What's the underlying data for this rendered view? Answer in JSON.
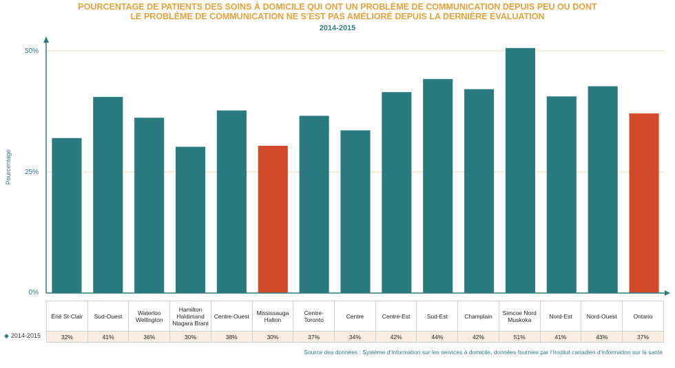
{
  "title_line1": "POURCENTAGE DE PATIENTS DES SOINS À DOMICILE QUI ONT UN PROBLÈME DE COMMUNICATION DEPUIS PEU OU DONT",
  "title_line2": "LE PROBLÈME DE COMMUNICATION NE S’EST PAS AMÉLIORÉ DEPUIS LA DERNIÈRE ÉVALUATION",
  "subtitle": "2014-2015",
  "ylabel": "Pourcentage",
  "yticks": [
    "0%",
    "25%",
    "50%"
  ],
  "series_label": "2014-2015",
  "source": "Source des données : Système d’information sur les services à domicile, données fournies par l’Institut canadien d’information sur la santé",
  "colors": {
    "teal": "#2a7b80",
    "highlight": "#d24a2a",
    "grid": "#f2d7b0"
  },
  "chart_data": {
    "type": "bar",
    "categories": [
      "Érié St-Clair",
      "Sud-Ouest",
      "Waterloo Wellington",
      "Hamilton Haldimand Niagara Brant",
      "Centre-Ouest",
      "Mississauga Halton",
      "Centre-Toronto",
      "Centre",
      "Centre-Est",
      "Sud-Est",
      "Champlain",
      "Simcoe Nord Muskoka",
      "Nord-Est",
      "Nord-Ouest",
      "Ontario"
    ],
    "series": [
      {
        "name": "2014-2015",
        "values": [
          32,
          40.5,
          36.2,
          30.2,
          37.7,
          30.4,
          36.6,
          33.6,
          41.5,
          44.2,
          42.1,
          50.6,
          40.6,
          42.7,
          37.1
        ],
        "labels": [
          "32%",
          "41%",
          "36%",
          "30%",
          "38%",
          "30%",
          "37%",
          "34%",
          "42%",
          "44%",
          "42%",
          "51%",
          "41%",
          "43%",
          "37%"
        ]
      }
    ],
    "highlighted": [
      "Mississauga Halton",
      "Ontario"
    ],
    "ylim": [
      0,
      50
    ],
    "yticks": [
      0,
      25,
      50
    ],
    "gridlines": [
      25,
      50
    ],
    "legend": "table-below"
  }
}
